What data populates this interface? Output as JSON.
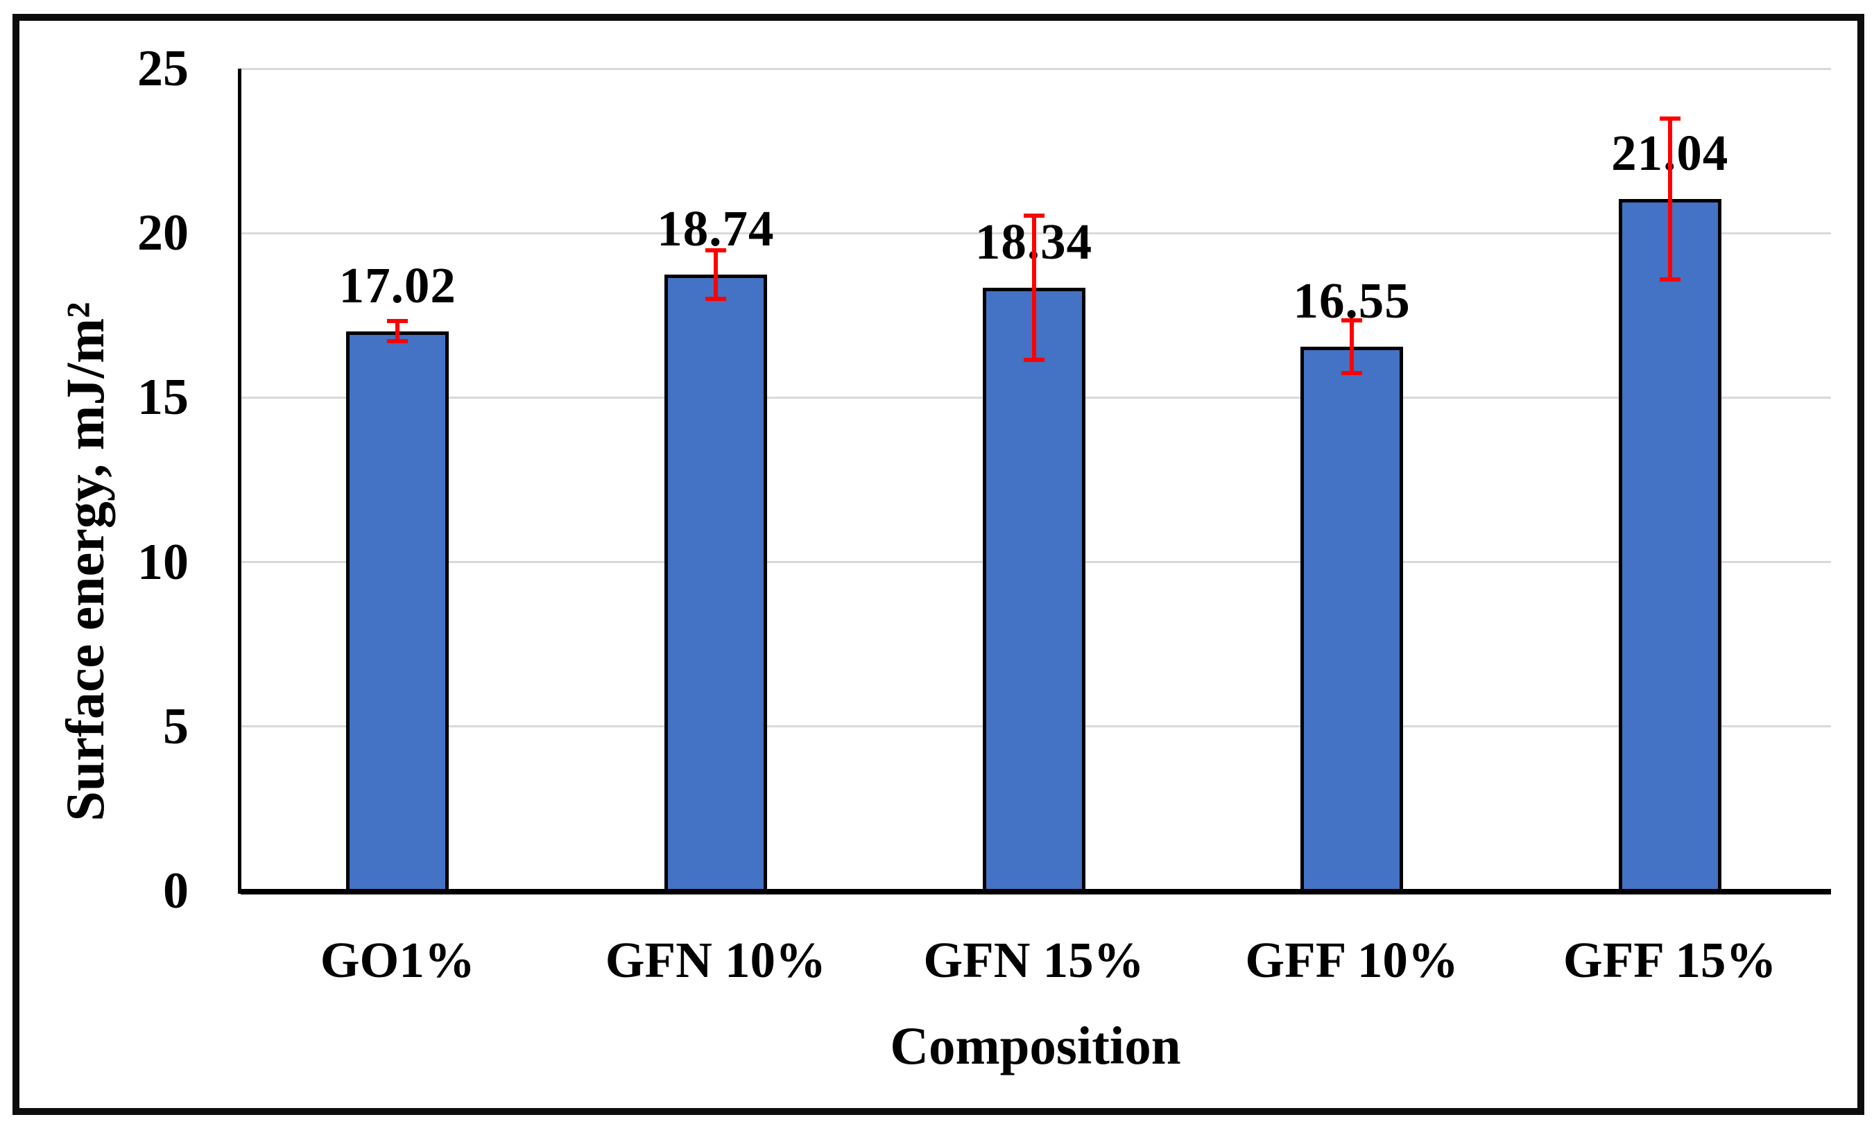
{
  "figure": {
    "background_color": "#ffffff",
    "frame_border_color": "#0d0d0d"
  },
  "chart_data": {
    "type": "bar",
    "title": "",
    "xlabel": "Composition",
    "ylabel": "Surface energy, mJ/m²",
    "categories": [
      "GO1%",
      "GFN 10%",
      "GFN 15%",
      "GFF 10%",
      "GFF 15%"
    ],
    "values": [
      17.02,
      18.74,
      18.34,
      16.55,
      21.04
    ],
    "data_labels": [
      "17.02",
      "18.74",
      "18.34",
      "16.55",
      "21.04"
    ],
    "error_bars": [
      0.3,
      0.73,
      2.2,
      0.8,
      2.45
    ],
    "y_ticks": [
      0,
      5,
      10,
      15,
      20,
      25
    ],
    "ylim": [
      0,
      25
    ],
    "grid": true,
    "legend": "none",
    "bar_color": "#4472c4",
    "bar_border_color": "#000000",
    "error_color": "#ff0000",
    "gridline_color": "#d9d9d9",
    "axis_color": "#000000",
    "text_color": "#000000"
  }
}
